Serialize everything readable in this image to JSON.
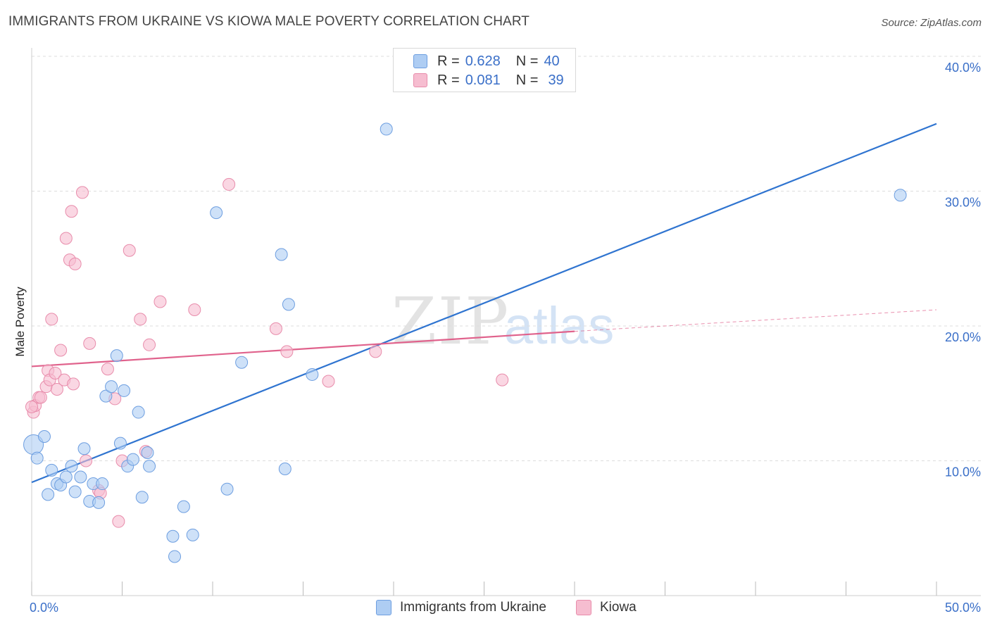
{
  "title": "IMMIGRANTS FROM UKRAINE VS KIOWA MALE POVERTY CORRELATION CHART",
  "source": "Source: ZipAtlas.com",
  "watermark": {
    "zip": "ZIP",
    "atlas": "atlas"
  },
  "legend": {
    "rows": [
      {
        "r_label": "R =",
        "r_value": "0.628",
        "n_label": "N =",
        "n_value": "40"
      },
      {
        "r_label": "R =",
        "r_value": "0.081",
        "n_label": "N =",
        "n_value": "39"
      }
    ]
  },
  "chart_data": {
    "type": "scatter",
    "title": "IMMIGRANTS FROM UKRAINE VS KIOWA MALE POVERTY CORRELATION CHART",
    "xlabel": "",
    "ylabel": "Male Poverty",
    "xlim": [
      0,
      50
    ],
    "ylim": [
      0,
      40
    ],
    "x_tick_labels": [
      "0.0%",
      "50.0%"
    ],
    "y_ticks": [
      10,
      20,
      30,
      40
    ],
    "y_tick_labels": [
      "10.0%",
      "20.0%",
      "30.0%",
      "40.0%"
    ],
    "grid": true,
    "colors": {
      "ukraine_fill": "#aecdf3",
      "ukraine_stroke": "#6d9ee0",
      "ukraine_line": "#2f74d0",
      "kiowa_fill": "#f6bdd0",
      "kiowa_stroke": "#e88cab",
      "kiowa_line": "#e0628c",
      "tick_text": "#3a6fc8"
    },
    "series": [
      {
        "name": "Immigrants from Ukraine",
        "points": [
          [
            0.1,
            11.2
          ],
          [
            0.3,
            10.2
          ],
          [
            0.7,
            11.8
          ],
          [
            0.9,
            7.5
          ],
          [
            1.1,
            9.3
          ],
          [
            1.4,
            8.3
          ],
          [
            1.6,
            8.2
          ],
          [
            1.9,
            8.8
          ],
          [
            2.2,
            9.6
          ],
          [
            2.4,
            7.7
          ],
          [
            2.7,
            8.8
          ],
          [
            2.9,
            10.9
          ],
          [
            3.2,
            7.0
          ],
          [
            3.4,
            8.3
          ],
          [
            3.7,
            6.9
          ],
          [
            3.9,
            8.3
          ],
          [
            4.1,
            14.8
          ],
          [
            4.4,
            15.5
          ],
          [
            4.7,
            17.8
          ],
          [
            4.9,
            11.3
          ],
          [
            5.1,
            15.2
          ],
          [
            5.3,
            9.6
          ],
          [
            5.6,
            10.1
          ],
          [
            5.9,
            13.6
          ],
          [
            6.1,
            7.3
          ],
          [
            6.4,
            10.6
          ],
          [
            6.5,
            9.6
          ],
          [
            7.8,
            4.4
          ],
          [
            7.9,
            2.9
          ],
          [
            8.4,
            6.6
          ],
          [
            8.9,
            4.5
          ],
          [
            10.2,
            28.4
          ],
          [
            10.8,
            7.9
          ],
          [
            11.6,
            17.3
          ],
          [
            13.8,
            25.3
          ],
          [
            14.0,
            9.4
          ],
          [
            14.2,
            21.6
          ],
          [
            15.5,
            16.4
          ],
          [
            19.6,
            34.6
          ],
          [
            48.0,
            29.7
          ]
        ],
        "trend": {
          "x": [
            0,
            50
          ],
          "y": [
            8.4,
            35.0
          ]
        }
      },
      {
        "name": "Kiowa",
        "points": [
          [
            0.1,
            13.6
          ],
          [
            0.2,
            14.1
          ],
          [
            0.4,
            14.7
          ],
          [
            0.5,
            14.7
          ],
          [
            0.8,
            15.5
          ],
          [
            0.9,
            16.7
          ],
          [
            1.0,
            16.0
          ],
          [
            1.1,
            20.5
          ],
          [
            1.3,
            16.5
          ],
          [
            1.4,
            15.3
          ],
          [
            1.6,
            18.2
          ],
          [
            1.8,
            16.0
          ],
          [
            1.9,
            26.5
          ],
          [
            2.1,
            24.9
          ],
          [
            2.2,
            28.5
          ],
          [
            2.3,
            15.7
          ],
          [
            2.4,
            24.6
          ],
          [
            2.8,
            29.9
          ],
          [
            3.0,
            10.0
          ],
          [
            3.2,
            18.7
          ],
          [
            3.7,
            7.8
          ],
          [
            3.8,
            7.6
          ],
          [
            4.2,
            16.8
          ],
          [
            4.6,
            14.6
          ],
          [
            4.8,
            5.5
          ],
          [
            5.0,
            10.0
          ],
          [
            5.4,
            25.6
          ],
          [
            6.0,
            20.5
          ],
          [
            6.3,
            10.7
          ],
          [
            6.5,
            18.6
          ],
          [
            7.1,
            21.8
          ],
          [
            9.0,
            21.2
          ],
          [
            10.9,
            30.5
          ],
          [
            13.5,
            19.8
          ],
          [
            14.1,
            18.1
          ],
          [
            16.4,
            15.9
          ],
          [
            19.0,
            18.1
          ],
          [
            26.0,
            16.0
          ],
          [
            0.0,
            14.0
          ]
        ],
        "trend": {
          "x": [
            0,
            30
          ],
          "y": [
            17.0,
            19.6
          ]
        },
        "trend_extrapolated": {
          "x": [
            30,
            50
          ],
          "y": [
            19.6,
            21.2
          ]
        }
      }
    ]
  }
}
